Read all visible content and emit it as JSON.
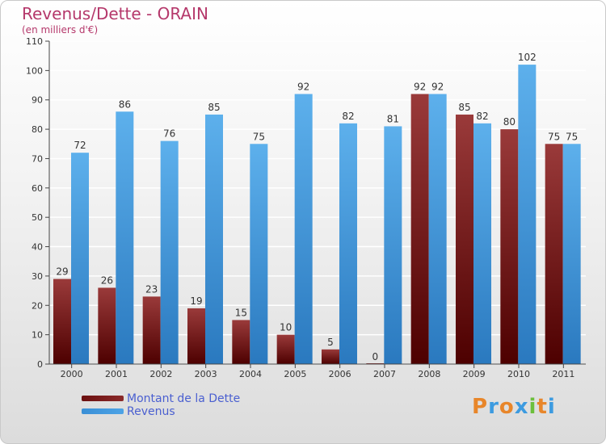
{
  "header": {
    "title": "Revenus/Dette - ORAIN",
    "subtitle": "(en milliers d'€)"
  },
  "legend": {
    "items": [
      {
        "label": "Montant de la Dette",
        "color": "#6b0f0f"
      },
      {
        "label": "Revenus",
        "color": "#4da3e6"
      }
    ]
  },
  "logo": {
    "text": "Proxiti",
    "letter_colors": [
      "#e8862a",
      "#3d9be0",
      "#e8862a",
      "#3d9be0",
      "#6cbf3c",
      "#e8862a",
      "#3d9be0"
    ]
  },
  "chart_data": {
    "type": "bar",
    "title": "Revenus/Dette - ORAIN",
    "subtitle": "(en milliers d'€)",
    "categories": [
      "2000",
      "2001",
      "2002",
      "2003",
      "2004",
      "2005",
      "2006",
      "2007",
      "2008",
      "2009",
      "2010",
      "2011"
    ],
    "series": [
      {
        "name": "Montant de la Dette",
        "color": "#7a1c1c",
        "values": [
          29,
          26,
          23,
          19,
          15,
          10,
          5,
          0,
          92,
          85,
          80,
          75
        ]
      },
      {
        "name": "Revenus",
        "color": "#4da3e6",
        "values": [
          72,
          86,
          76,
          85,
          75,
          92,
          82,
          81,
          92,
          82,
          102,
          75
        ]
      }
    ],
    "ylim": [
      0,
      110
    ],
    "yticks": [
      0,
      10,
      20,
      30,
      40,
      50,
      60,
      70,
      80,
      90,
      100,
      110
    ],
    "grid": true,
    "legend_position": "bottom-left",
    "colors": {
      "text": "#333333",
      "axis": "#444444",
      "grid": "#ffffff"
    }
  }
}
